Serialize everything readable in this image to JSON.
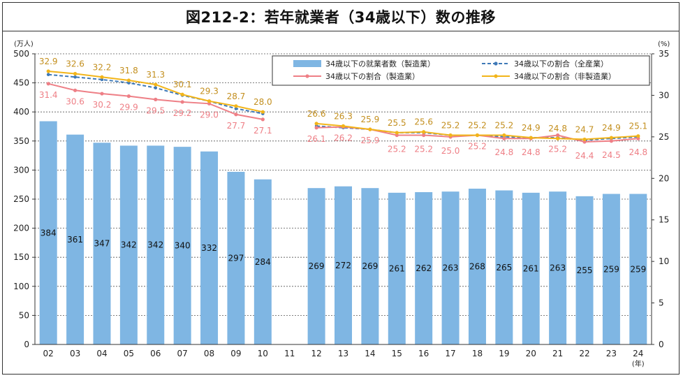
{
  "title": "図212-2：若年就業者（34歳以下）数の推移",
  "chart_data": {
    "type": "bar",
    "categories": [
      "02",
      "03",
      "04",
      "05",
      "06",
      "07",
      "08",
      "09",
      "10",
      "11",
      "12",
      "13",
      "14",
      "15",
      "16",
      "17",
      "18",
      "19",
      "20",
      "21",
      "22",
      "23",
      "24"
    ],
    "x_unit": "(年)",
    "y_left": {
      "unit": "(万人)",
      "lim": [
        0,
        500
      ],
      "ticks": [
        0,
        50,
        100,
        150,
        200,
        250,
        300,
        350,
        400,
        450,
        500
      ]
    },
    "y_right": {
      "unit": "(%)",
      "lim": [
        0,
        35
      ],
      "ticks": [
        0,
        5,
        10,
        15,
        20,
        25,
        30,
        35
      ]
    },
    "grid": "dashed horizontal at left-axis ticks",
    "series": [
      {
        "name": "34歳以下の就業者数（製造業）",
        "kind": "bar",
        "axis": "left",
        "color": "#7fb6e3",
        "values": [
          384,
          361,
          347,
          342,
          342,
          340,
          332,
          297,
          284,
          null,
          269,
          272,
          269,
          261,
          262,
          263,
          268,
          265,
          261,
          263,
          255,
          259,
          259
        ]
      },
      {
        "name": "34歳以下の割合（全産業）",
        "kind": "line",
        "style": "dashed",
        "axis": "right",
        "color": "#3f79b7",
        "values": [
          32.5,
          32.2,
          31.9,
          31.5,
          30.9,
          30.0,
          29.3,
          28.4,
          27.8,
          null,
          26.3,
          26.1,
          25.9,
          25.5,
          25.5,
          25.2,
          25.2,
          25.0,
          24.9,
          24.9,
          24.6,
          24.8,
          25.0
        ]
      },
      {
        "name": "34歳以下の割合（製造業）",
        "kind": "line",
        "axis": "right",
        "color": "#ee7f86",
        "values": [
          31.4,
          30.6,
          30.2,
          29.9,
          29.5,
          29.2,
          29.0,
          27.7,
          27.1,
          null,
          26.1,
          26.2,
          25.9,
          25.2,
          25.2,
          25.0,
          25.2,
          24.8,
          24.8,
          25.2,
          24.4,
          24.5,
          24.8
        ]
      },
      {
        "name": "34歳以下の割合（非製造業）",
        "kind": "line",
        "axis": "right",
        "color": "#f2b51a",
        "values": [
          32.9,
          32.6,
          32.2,
          31.8,
          31.3,
          30.1,
          29.3,
          28.7,
          28.0,
          null,
          26.6,
          26.3,
          25.9,
          25.5,
          25.6,
          25.2,
          25.2,
          25.2,
          24.9,
          24.8,
          24.7,
          24.9,
          25.1
        ]
      }
    ],
    "legend": {
      "placement": "top-right"
    }
  }
}
